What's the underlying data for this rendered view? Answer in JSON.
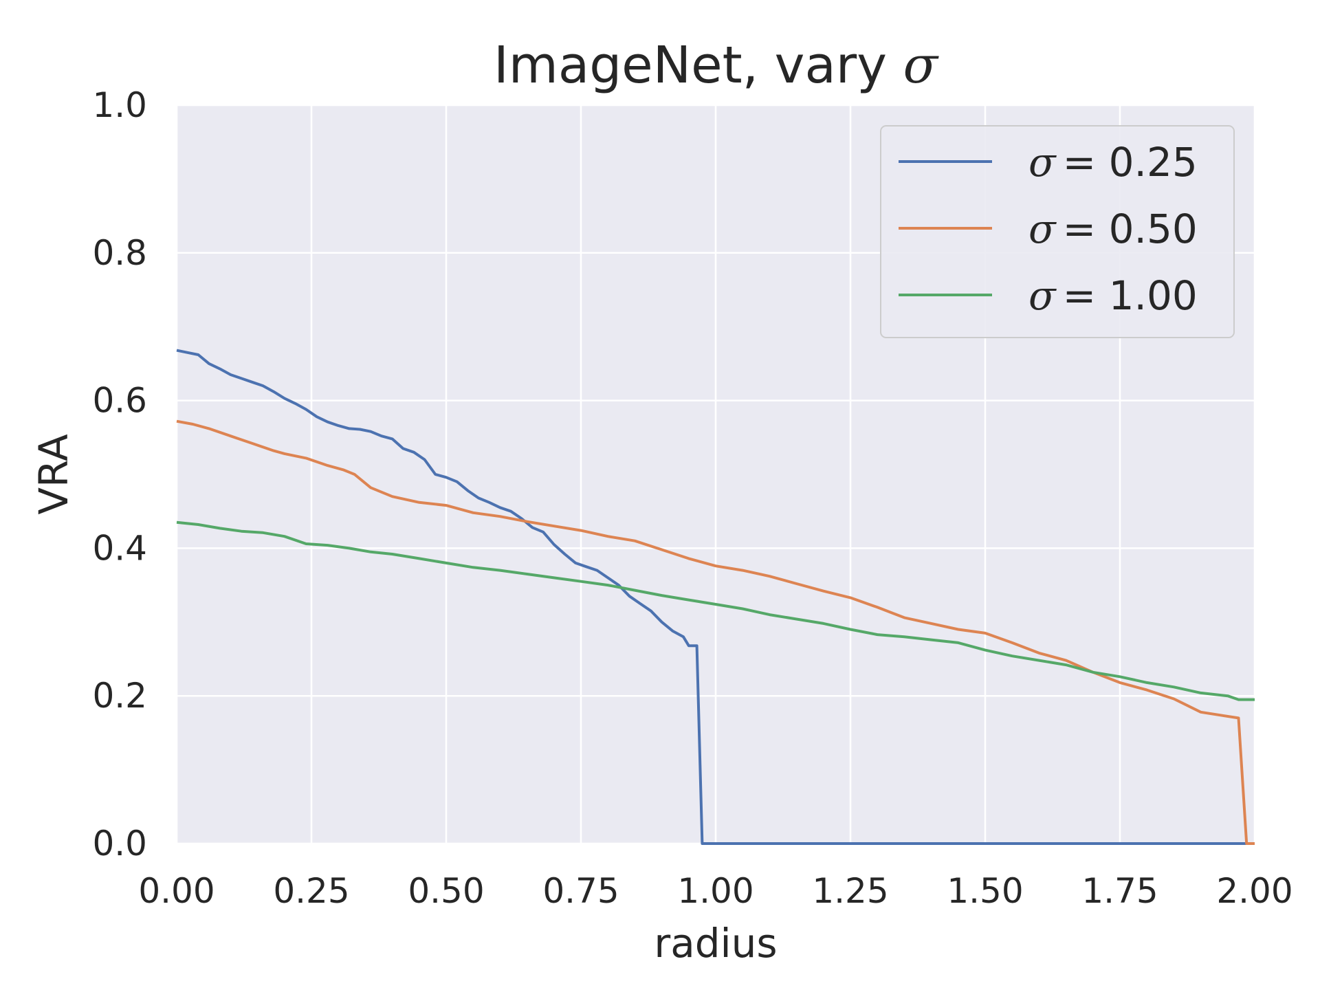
{
  "chart_data": {
    "type": "line",
    "title": "ImageNet, vary σ",
    "title_prefix": "ImageNet, vary ",
    "title_symbol": "σ",
    "xlabel": "radius",
    "ylabel": "VRA",
    "xlim": [
      0,
      2.0
    ],
    "ylim": [
      0,
      1.0
    ],
    "x_ticks": [
      "0.00",
      "0.25",
      "0.50",
      "0.75",
      "1.00",
      "1.25",
      "1.50",
      "1.75",
      "2.00"
    ],
    "y_ticks": [
      "0.0",
      "0.2",
      "0.4",
      "0.6",
      "0.8",
      "1.0"
    ],
    "grid": true,
    "background": "#eaeaf2",
    "legend_position": "top-right",
    "series": [
      {
        "name": "σ = 0.25",
        "symbol": "σ",
        "value_label": "= 0.25",
        "color": "#4c72b0",
        "points": [
          [
            0,
            0.668
          ],
          [
            0.02,
            0.665
          ],
          [
            0.04,
            0.662
          ],
          [
            0.06,
            0.65
          ],
          [
            0.08,
            0.643
          ],
          [
            0.1,
            0.635
          ],
          [
            0.12,
            0.63
          ],
          [
            0.14,
            0.625
          ],
          [
            0.16,
            0.62
          ],
          [
            0.18,
            0.612
          ],
          [
            0.2,
            0.603
          ],
          [
            0.22,
            0.596
          ],
          [
            0.24,
            0.588
          ],
          [
            0.26,
            0.578
          ],
          [
            0.28,
            0.571
          ],
          [
            0.3,
            0.566
          ],
          [
            0.32,
            0.562
          ],
          [
            0.34,
            0.561
          ],
          [
            0.36,
            0.558
          ],
          [
            0.38,
            0.552
          ],
          [
            0.4,
            0.548
          ],
          [
            0.42,
            0.535
          ],
          [
            0.44,
            0.53
          ],
          [
            0.46,
            0.52
          ],
          [
            0.48,
            0.5
          ],
          [
            0.5,
            0.496
          ],
          [
            0.52,
            0.49
          ],
          [
            0.54,
            0.478
          ],
          [
            0.56,
            0.468
          ],
          [
            0.58,
            0.462
          ],
          [
            0.6,
            0.455
          ],
          [
            0.62,
            0.45
          ],
          [
            0.64,
            0.44
          ],
          [
            0.66,
            0.428
          ],
          [
            0.68,
            0.422
          ],
          [
            0.7,
            0.405
          ],
          [
            0.72,
            0.392
          ],
          [
            0.74,
            0.38
          ],
          [
            0.76,
            0.375
          ],
          [
            0.78,
            0.37
          ],
          [
            0.8,
            0.36
          ],
          [
            0.82,
            0.35
          ],
          [
            0.84,
            0.335
          ],
          [
            0.86,
            0.325
          ],
          [
            0.88,
            0.315
          ],
          [
            0.9,
            0.3
          ],
          [
            0.92,
            0.288
          ],
          [
            0.94,
            0.28
          ],
          [
            0.95,
            0.268
          ],
          [
            0.965,
            0.268
          ],
          [
            0.975,
            0.0
          ],
          [
            2.0,
            0.0
          ]
        ]
      },
      {
        "name": "σ = 0.50",
        "symbol": "σ",
        "value_label": "= 0.50",
        "color": "#dd8452",
        "points": [
          [
            0,
            0.572
          ],
          [
            0.03,
            0.568
          ],
          [
            0.06,
            0.562
          ],
          [
            0.1,
            0.552
          ],
          [
            0.14,
            0.542
          ],
          [
            0.18,
            0.532
          ],
          [
            0.2,
            0.528
          ],
          [
            0.24,
            0.522
          ],
          [
            0.28,
            0.512
          ],
          [
            0.31,
            0.506
          ],
          [
            0.33,
            0.5
          ],
          [
            0.36,
            0.482
          ],
          [
            0.4,
            0.47
          ],
          [
            0.45,
            0.462
          ],
          [
            0.5,
            0.458
          ],
          [
            0.55,
            0.448
          ],
          [
            0.6,
            0.443
          ],
          [
            0.65,
            0.436
          ],
          [
            0.7,
            0.43
          ],
          [
            0.75,
            0.424
          ],
          [
            0.8,
            0.416
          ],
          [
            0.85,
            0.41
          ],
          [
            0.9,
            0.398
          ],
          [
            0.95,
            0.386
          ],
          [
            1.0,
            0.376
          ],
          [
            1.05,
            0.37
          ],
          [
            1.1,
            0.362
          ],
          [
            1.15,
            0.352
          ],
          [
            1.2,
            0.342
          ],
          [
            1.25,
            0.333
          ],
          [
            1.3,
            0.32
          ],
          [
            1.35,
            0.306
          ],
          [
            1.4,
            0.298
          ],
          [
            1.45,
            0.29
          ],
          [
            1.5,
            0.285
          ],
          [
            1.55,
            0.272
          ],
          [
            1.6,
            0.258
          ],
          [
            1.65,
            0.248
          ],
          [
            1.7,
            0.232
          ],
          [
            1.75,
            0.218
          ],
          [
            1.8,
            0.208
          ],
          [
            1.85,
            0.196
          ],
          [
            1.9,
            0.178
          ],
          [
            1.97,
            0.17
          ],
          [
            1.985,
            0.0
          ],
          [
            2.0,
            0.0
          ]
        ]
      },
      {
        "name": "σ = 1.00",
        "symbol": "σ",
        "value_label": "= 1.00",
        "color": "#55a868",
        "points": [
          [
            0,
            0.435
          ],
          [
            0.04,
            0.432
          ],
          [
            0.08,
            0.427
          ],
          [
            0.12,
            0.423
          ],
          [
            0.16,
            0.421
          ],
          [
            0.2,
            0.416
          ],
          [
            0.24,
            0.406
          ],
          [
            0.28,
            0.404
          ],
          [
            0.32,
            0.4
          ],
          [
            0.36,
            0.395
          ],
          [
            0.4,
            0.392
          ],
          [
            0.45,
            0.386
          ],
          [
            0.5,
            0.38
          ],
          [
            0.55,
            0.374
          ],
          [
            0.6,
            0.37
          ],
          [
            0.65,
            0.365
          ],
          [
            0.7,
            0.36
          ],
          [
            0.75,
            0.355
          ],
          [
            0.8,
            0.35
          ],
          [
            0.85,
            0.343
          ],
          [
            0.9,
            0.336
          ],
          [
            0.95,
            0.33
          ],
          [
            1.0,
            0.324
          ],
          [
            1.05,
            0.318
          ],
          [
            1.1,
            0.31
          ],
          [
            1.15,
            0.304
          ],
          [
            1.2,
            0.298
          ],
          [
            1.25,
            0.29
          ],
          [
            1.3,
            0.283
          ],
          [
            1.35,
            0.28
          ],
          [
            1.4,
            0.276
          ],
          [
            1.45,
            0.272
          ],
          [
            1.5,
            0.262
          ],
          [
            1.55,
            0.254
          ],
          [
            1.6,
            0.248
          ],
          [
            1.65,
            0.242
          ],
          [
            1.7,
            0.232
          ],
          [
            1.75,
            0.226
          ],
          [
            1.8,
            0.218
          ],
          [
            1.85,
            0.212
          ],
          [
            1.9,
            0.204
          ],
          [
            1.95,
            0.2
          ],
          [
            1.97,
            0.195
          ],
          [
            2.0,
            0.195
          ]
        ]
      }
    ]
  }
}
